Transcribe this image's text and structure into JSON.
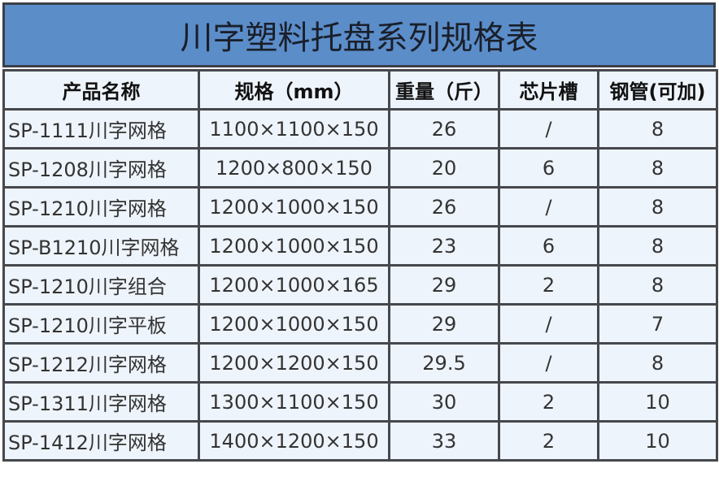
{
  "title": "川字塑料托盘系列规格表",
  "headers": [
    "产品名称",
    "规格（mm）",
    "重量（斤）",
    "芯片槽",
    "钢管(可加)"
  ],
  "rows": [
    [
      "SP-1111川字网格",
      "1100×1100×150",
      "26",
      "/",
      "8"
    ],
    [
      "SP-1208川字网格",
      "1200×800×150",
      "20",
      "6",
      "8"
    ],
    [
      "SP-1210川字网格",
      "1200×1000×150",
      "26",
      "/",
      "8"
    ],
    [
      "SP-B1210川字网格",
      "1200×1000×150",
      "23",
      "6",
      "8"
    ],
    [
      "SP-1210川字组合",
      "1200×1000×165",
      "29",
      "2",
      "8"
    ],
    [
      "SP-1210川字平板",
      "1200×1000×150",
      "29",
      "/",
      "7"
    ],
    [
      "SP-1212川字网格",
      "1200×1200×150",
      "29.5",
      "/",
      "8"
    ],
    [
      "SP-1311川字网格",
      "1300×1100×150",
      "30",
      "2",
      "10"
    ],
    [
      "SP-1412川字网格",
      "1400×1200×150",
      "33",
      "2",
      "10"
    ]
  ],
  "colors": {
    "title_bg": "#5b8dc9",
    "cell_bg": "#eef4fb",
    "border": "#45484d"
  }
}
